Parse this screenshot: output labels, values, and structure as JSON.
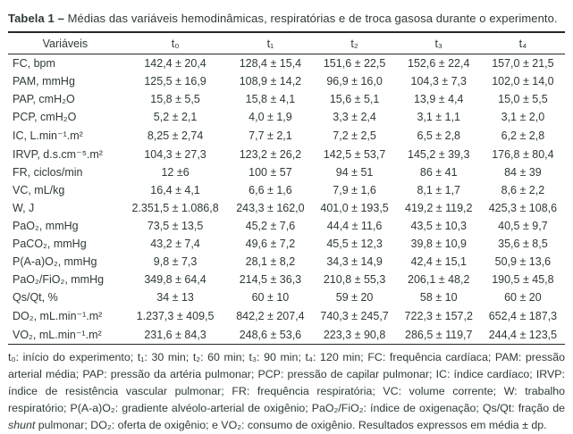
{
  "caption": {
    "label": "Tabela 1 –",
    "text": "Médias das variáveis hemodinâmicas, respiratórias e de troca gasosa durante o experimento."
  },
  "table": {
    "columns": [
      "Variáveis",
      "t₀",
      "t₁",
      "t₂",
      "t₃",
      "t₄"
    ],
    "rows": [
      {
        "label": "FC, bpm",
        "values": [
          "142,4 ± 20,4",
          "128,4 ± 15,4",
          "151,6 ± 22,5",
          "152,6 ± 22,4",
          "157,0 ± 21,5"
        ]
      },
      {
        "label": "PAM, mmHg",
        "values": [
          "125,5 ± 16,9",
          "108,9 ± 14,2",
          "96,9 ± 16,0",
          "104,3 ± 7,3",
          "102,0 ± 14,0"
        ]
      },
      {
        "label": "PAP, cmH₂O",
        "values": [
          "15,8 ± 5,5",
          "15,8 ± 4,1",
          "15,6 ± 5,1",
          "13,9 ± 4,4",
          "15,0 ± 5,5"
        ]
      },
      {
        "label": "PCP, cmH₂O",
        "values": [
          "5,2 ± 2,1",
          "4,0 ± 1,9",
          "3,3 ± 2,4",
          "3,1 ± 1,1",
          "3,1 ± 2,0"
        ]
      },
      {
        "label": "IC, L.min⁻¹.m²",
        "values": [
          "8,25 ± 2,74",
          "7,7 ± 2,1",
          "7,2 ± 2,5",
          "6,5 ± 2,8",
          "6,2 ± 2,8"
        ]
      },
      {
        "label": "IRVP, d.s.cm⁻⁵.m²",
        "values": [
          "104,3 ± 27,3",
          "123,2 ± 26,2",
          "142,5 ± 53,7",
          "145,2 ± 39,3",
          "176,8 ± 80,4"
        ]
      },
      {
        "label": "FR, ciclos/min",
        "values": [
          "12 ±6",
          "100 ± 57",
          "94 ± 51",
          "86 ± 41",
          "84 ± 39"
        ]
      },
      {
        "label": "VC, mL/kg",
        "values": [
          "16,4 ± 4,1",
          "6,6 ± 1,6",
          "7,9 ± 1,6",
          "8,1 ± 1,7",
          "8,6 ± 2,2"
        ]
      },
      {
        "label": "W, J",
        "values": [
          "2.351,5 ± 1.086,8",
          "243,3 ± 162,0",
          "401,0 ± 193,5",
          "419,2 ± 119,2",
          "425,3 ± 108,6"
        ]
      },
      {
        "label": "PaO₂, mmHg",
        "values": [
          "73,5 ± 13,5",
          "45,2 ± 7,6",
          "44,4 ± 11,6",
          "43,5 ± 10,3",
          "40,5 ± 9,7"
        ]
      },
      {
        "label": "PaCO₂, mmHg",
        "values": [
          "43,2 ± 7,4",
          "49,6 ± 7,2",
          "45,5 ± 12,3",
          "39,8 ± 10,9",
          "35,6 ± 8,5"
        ]
      },
      {
        "label": "P(A-a)O₂, mmHg",
        "values": [
          "9,8 ± 7,3",
          "28,1 ± 8,2",
          "34,3 ± 14,9",
          "42,4 ± 15,1",
          "50,9 ± 13,6"
        ]
      },
      {
        "label": "PaO₂/FiO₂, mmHg",
        "values": [
          "349,8 ± 64,4",
          "214,5 ± 36,3",
          "210,8 ± 55,3",
          "206,1 ± 48,2",
          "190,5 ± 45,8"
        ]
      },
      {
        "label": "Qs/Qt, %",
        "values": [
          "34 ± 13",
          "60 ± 10",
          "59 ± 20",
          "58 ± 10",
          "60 ± 20"
        ]
      },
      {
        "label": "DO₂, mL.min⁻¹.m²",
        "values": [
          "1.237,3 ± 409,5",
          "842,2 ± 207,4",
          "740,3 ± 245,7",
          "722,3 ± 157,2",
          "652,4 ± 187,3"
        ]
      },
      {
        "label": "VO₂, mL.min⁻¹.m²",
        "values": [
          "231,6 ± 84,3",
          "248,6 ± 53,6",
          "223,3 ± 90,8",
          "286,5 ± 119,7",
          "244,4 ± 123,5"
        ]
      }
    ]
  },
  "footnote": {
    "part1": "t₀: início do experimento; t₁: 30 min; t₂: 60 min; t₃: 90 min; t₄: 120 min; FC: frequência cardíaca; PAM: pressão arterial média; PAP: pressão da artéria pulmonar; PCP: pressão de capilar pulmonar; IC: índice cardíaco; IRVP: índice de resistência vascular pulmonar; FR: frequência respiratória; VC: volume corrente; W: trabalho respiratório; P(A-a)O₂: gradiente alvéolo-arterial de oxigênio; PaO₂/FiO₂: índice de oxigenação; Qs/Qt: fração de ",
    "italic": "shunt",
    "part2": " pulmonar; DO₂: oferta de oxigênio; e VO₂: consumo de oxigênio. Resultados expressos em média ± dp."
  },
  "colors": {
    "text": "#2e3a38",
    "rule": "#222b29",
    "background": "#ffffff"
  }
}
